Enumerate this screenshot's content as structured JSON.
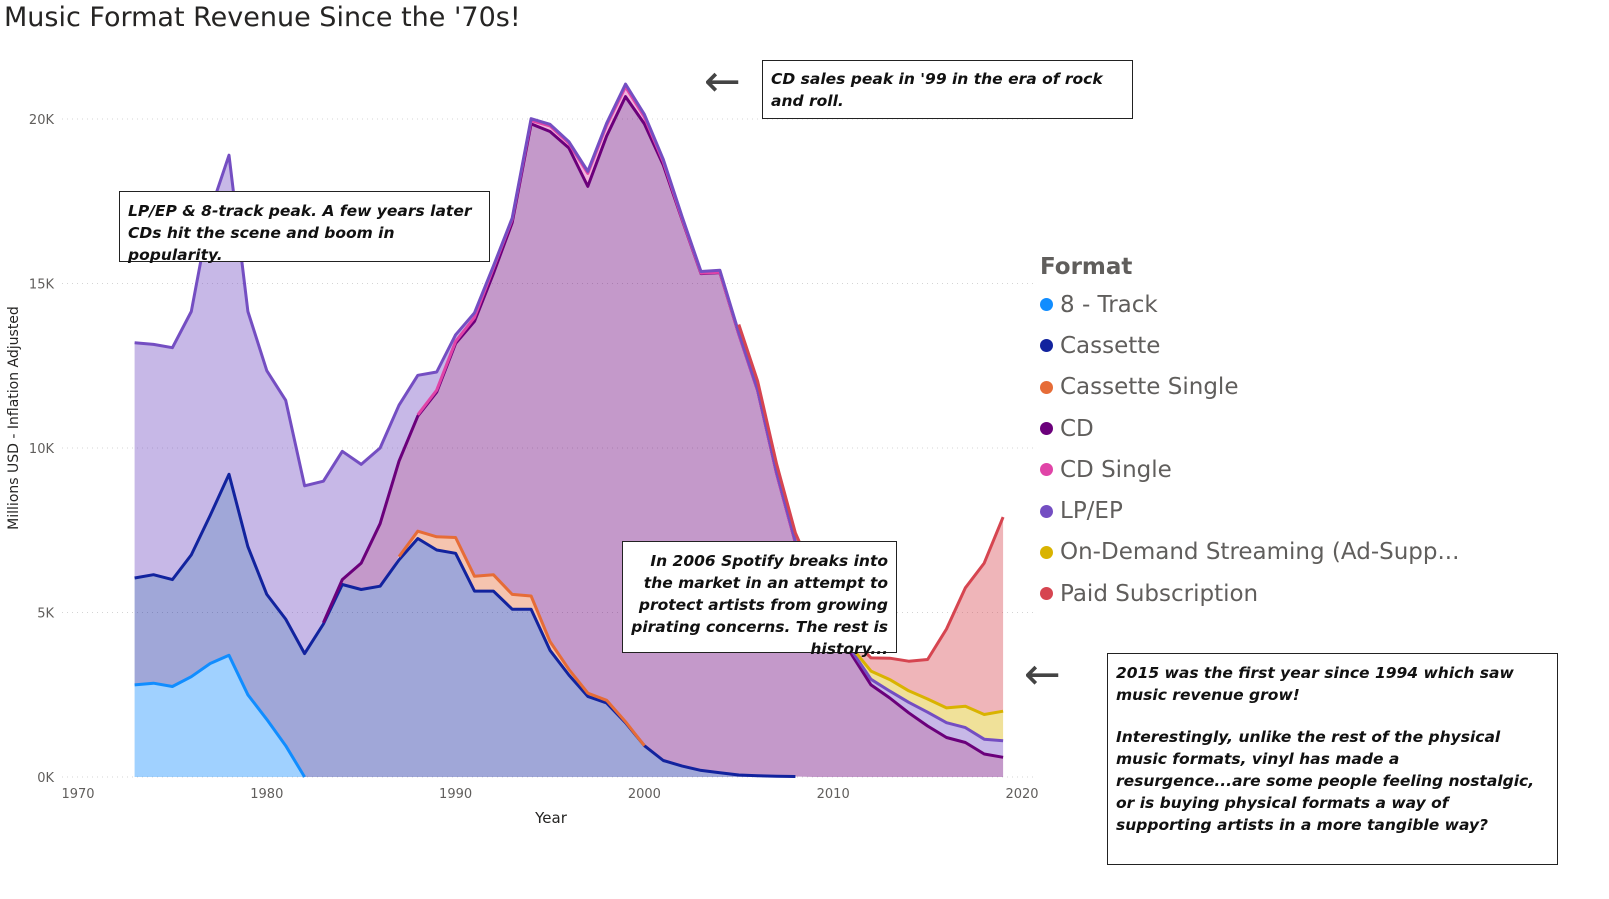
{
  "chart_data": {
    "type": "area",
    "title": "Music Format Revenue Since the '70s!",
    "xlabel": "Year",
    "ylabel": "Millions USD - Inflation Adjusted",
    "xlim": [
      1970,
      2020
    ],
    "ylim": [
      0,
      22000
    ],
    "x_ticks": [
      1970,
      1980,
      1990,
      2000,
      2010,
      2020
    ],
    "y_ticks": [
      0,
      5000,
      10000,
      15000,
      20000
    ],
    "y_tick_labels": [
      "0K",
      "5K",
      "10K",
      "15K",
      "20K"
    ],
    "grid": true,
    "legend_title": "Format",
    "legend_position": "right",
    "series": [
      {
        "name": "8 - Track",
        "color": "#118dff",
        "points": [
          [
            1973,
            2800
          ],
          [
            1974,
            2850
          ],
          [
            1975,
            2750
          ],
          [
            1976,
            3050
          ],
          [
            1977,
            3450
          ],
          [
            1978,
            3700
          ],
          [
            1979,
            2500
          ],
          [
            1980,
            1750
          ],
          [
            1981,
            950
          ],
          [
            1982,
            0
          ]
        ]
      },
      {
        "name": "Cassette",
        "color": "#12239e",
        "points": [
          [
            1973,
            3250
          ],
          [
            1974,
            3300
          ],
          [
            1975,
            3250
          ],
          [
            1976,
            3700
          ],
          [
            1977,
            4500
          ],
          [
            1978,
            5500
          ],
          [
            1979,
            4500
          ],
          [
            1980,
            3800
          ],
          [
            1981,
            3850
          ],
          [
            1982,
            3750
          ],
          [
            1983,
            4650
          ],
          [
            1984,
            5850
          ],
          [
            1985,
            5700
          ],
          [
            1986,
            5800
          ],
          [
            1987,
            6600
          ],
          [
            1988,
            7250
          ],
          [
            1989,
            6900
          ],
          [
            1990,
            6800
          ],
          [
            1991,
            5650
          ],
          [
            1992,
            5650
          ],
          [
            1993,
            5100
          ],
          [
            1994,
            5100
          ],
          [
            1995,
            3850
          ],
          [
            1996,
            3100
          ],
          [
            1997,
            2450
          ],
          [
            1998,
            2250
          ],
          [
            1999,
            1650
          ],
          [
            2000,
            950
          ],
          [
            2001,
            500
          ],
          [
            2002,
            330
          ],
          [
            2003,
            200
          ],
          [
            2004,
            130
          ],
          [
            2005,
            60
          ],
          [
            2006,
            40
          ],
          [
            2007,
            25
          ],
          [
            2008,
            15
          ]
        ]
      },
      {
        "name": "Cassette Single",
        "color": "#e66c37",
        "points": [
          [
            1987,
            100
          ],
          [
            1988,
            220
          ],
          [
            1989,
            400
          ],
          [
            1990,
            480
          ],
          [
            1991,
            450
          ],
          [
            1992,
            500
          ],
          [
            1993,
            450
          ],
          [
            1994,
            400
          ],
          [
            1995,
            270
          ],
          [
            1996,
            170
          ],
          [
            1997,
            100
          ],
          [
            1998,
            80
          ],
          [
            1999,
            30
          ],
          [
            2000,
            0
          ]
        ]
      },
      {
        "name": "CD",
        "color": "#6b007b",
        "points": [
          [
            1983,
            40
          ],
          [
            1984,
            150
          ],
          [
            1985,
            800
          ],
          [
            1986,
            1900
          ],
          [
            1987,
            2900
          ],
          [
            1988,
            3500
          ],
          [
            1989,
            4400
          ],
          [
            1990,
            5900
          ],
          [
            1991,
            7750
          ],
          [
            1992,
            9150
          ],
          [
            1993,
            11300
          ],
          [
            1994,
            14350
          ],
          [
            1995,
            15500
          ],
          [
            1996,
            15850
          ],
          [
            1997,
            15400
          ],
          [
            1998,
            17150
          ],
          [
            1999,
            19000
          ],
          [
            2000,
            18900
          ],
          [
            2001,
            18100
          ],
          [
            2002,
            16600
          ],
          [
            2003,
            15100
          ],
          [
            2004,
            15200
          ],
          [
            2005,
            13400
          ],
          [
            2006,
            11700
          ],
          [
            2007,
            9200
          ],
          [
            2008,
            7100
          ],
          [
            2009,
            5800
          ],
          [
            2010,
            4700
          ],
          [
            2011,
            3700
          ],
          [
            2012,
            2800
          ],
          [
            2013,
            2400
          ],
          [
            2014,
            1950
          ],
          [
            2015,
            1550
          ],
          [
            2016,
            1200
          ],
          [
            2017,
            1050
          ],
          [
            2018,
            700
          ],
          [
            2019,
            600
          ]
        ]
      },
      {
        "name": "CD Single",
        "color": "#e044a7",
        "points": [
          [
            1988,
            40
          ],
          [
            1989,
            60
          ],
          [
            1990,
            60
          ],
          [
            1991,
            120
          ],
          [
            1992,
            170
          ],
          [
            1993,
            100
          ],
          [
            1994,
            100
          ],
          [
            1995,
            170
          ],
          [
            1996,
            140
          ],
          [
            1997,
            400
          ],
          [
            1998,
            330
          ],
          [
            1999,
            300
          ],
          [
            2000,
            210
          ],
          [
            2001,
            100
          ],
          [
            2002,
            30
          ],
          [
            2003,
            15
          ],
          [
            2004,
            10
          ],
          [
            2005,
            5
          ],
          [
            2006,
            3
          ],
          [
            2007,
            1
          ],
          [
            2008,
            0
          ]
        ]
      },
      {
        "name": "LP/EP",
        "color": "#744ec2",
        "points": [
          [
            1973,
            7150
          ],
          [
            1974,
            7000
          ],
          [
            1975,
            7050
          ],
          [
            1976,
            7400
          ],
          [
            1977,
            9250
          ],
          [
            1978,
            9700
          ],
          [
            1979,
            7150
          ],
          [
            1980,
            6800
          ],
          [
            1981,
            6650
          ],
          [
            1982,
            5100
          ],
          [
            1983,
            4300
          ],
          [
            1984,
            3900
          ],
          [
            1985,
            3000
          ],
          [
            1986,
            2300
          ],
          [
            1987,
            1700
          ],
          [
            1988,
            1200
          ],
          [
            1989,
            550
          ],
          [
            1990,
            200
          ],
          [
            1991,
            140
          ],
          [
            1992,
            60
          ],
          [
            1993,
            40
          ],
          [
            1994,
            60
          ],
          [
            1995,
            50
          ],
          [
            1996,
            50
          ],
          [
            1997,
            60
          ],
          [
            1998,
            60
          ],
          [
            1999,
            80
          ],
          [
            2000,
            80
          ],
          [
            2001,
            70
          ],
          [
            2002,
            60
          ],
          [
            2003,
            50
          ],
          [
            2004,
            60
          ],
          [
            2005,
            40
          ],
          [
            2006,
            30
          ],
          [
            2007,
            40
          ],
          [
            2008,
            50
          ],
          [
            2009,
            60
          ],
          [
            2010,
            90
          ],
          [
            2011,
            120
          ],
          [
            2012,
            170
          ],
          [
            2013,
            210
          ],
          [
            2014,
            320
          ],
          [
            2015,
            420
          ],
          [
            2016,
            450
          ],
          [
            2017,
            450
          ],
          [
            2018,
            450
          ],
          [
            2019,
            500
          ]
        ]
      },
      {
        "name": "On-Demand Streaming (Ad-Supp...",
        "color": "#d9b300",
        "points": [
          [
            2011,
            100
          ],
          [
            2012,
            250
          ],
          [
            2013,
            350
          ],
          [
            2014,
            350
          ],
          [
            2015,
            400
          ],
          [
            2016,
            450
          ],
          [
            2017,
            650
          ],
          [
            2018,
            750
          ],
          [
            2019,
            900
          ]
        ]
      },
      {
        "name": "Paid Subscription",
        "color": "#d64550",
        "points": [
          [
            2005,
            250
          ],
          [
            2006,
            250
          ],
          [
            2007,
            250
          ],
          [
            2008,
            250
          ],
          [
            2009,
            250
          ],
          [
            2010,
            250
          ],
          [
            2011,
            300
          ],
          [
            2012,
            400
          ],
          [
            2013,
            650
          ],
          [
            2014,
            900
          ],
          [
            2015,
            1200
          ],
          [
            2016,
            2400
          ],
          [
            2017,
            3600
          ],
          [
            2018,
            4600
          ],
          [
            2019,
            5900
          ]
        ]
      }
    ],
    "annotations": [
      {
        "id": "cd-peak",
        "text": "CD sales peak in '99 in the era of rock and roll."
      },
      {
        "id": "lp-peak",
        "text": "LP/EP & 8-track peak. A few years later CDs hit the scene and boom in popularity."
      },
      {
        "id": "spotify",
        "text": "In 2006 Spotify breaks into the market in an attempt to protect artists from growing pirating concerns. The rest is history..."
      },
      {
        "id": "growth",
        "text": "2015 was the first year since 1994 which saw music revenue grow!",
        "text2": "Interestingly, unlike the rest of the physical music formats, vinyl has made a resurgence...are some people feeling nostalgic, or is buying physical formats a way of supporting artists in a more tangible way?"
      }
    ]
  }
}
